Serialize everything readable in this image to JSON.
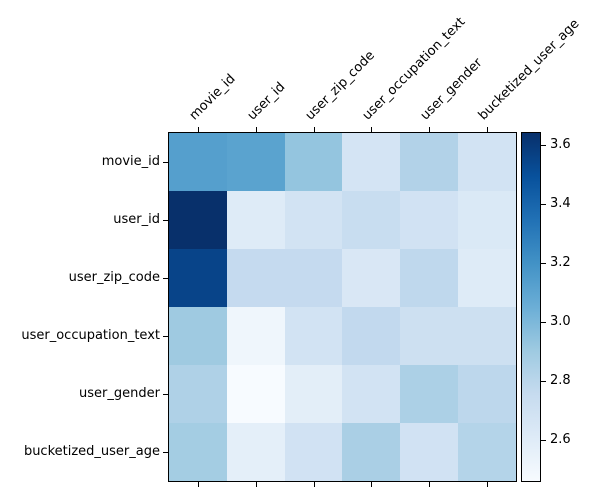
{
  "figure": {
    "background": "#ffffff",
    "text_color": "#000000",
    "spine_color": "#000000"
  },
  "chart_data": {
    "type": "heatmap",
    "title": "",
    "xlabel": "",
    "ylabel": "",
    "grid": false,
    "x_tick_labels": [
      "movie_id",
      "user_id",
      "user_zip_code",
      "user_occupation_text",
      "user_gender",
      "bucketized_user_age"
    ],
    "y_tick_labels": [
      "movie_id",
      "user_id",
      "user_zip_code",
      "user_occupation_text",
      "user_gender",
      "bucketized_user_age"
    ],
    "values": [
      [
        3.13,
        3.11,
        2.93,
        2.67,
        2.83,
        2.68
      ],
      [
        3.64,
        2.61,
        2.68,
        2.74,
        2.69,
        2.63
      ],
      [
        3.55,
        2.76,
        2.76,
        2.64,
        2.78,
        2.61
      ],
      [
        2.9,
        2.51,
        2.68,
        2.77,
        2.71,
        2.71
      ],
      [
        2.84,
        2.46,
        2.58,
        2.68,
        2.85,
        2.79
      ],
      [
        2.88,
        2.57,
        2.69,
        2.86,
        2.69,
        2.82
      ]
    ],
    "vmin": 2.46,
    "vmax": 3.64,
    "colormap": {
      "name": "Blues",
      "anchors": [
        {
          "t": 0.0,
          "color": "#f7fbff"
        },
        {
          "t": 0.125,
          "color": "#deebf7"
        },
        {
          "t": 0.25,
          "color": "#c6dbef"
        },
        {
          "t": 0.375,
          "color": "#9ecae1"
        },
        {
          "t": 0.5,
          "color": "#6baed6"
        },
        {
          "t": 0.625,
          "color": "#4292c6"
        },
        {
          "t": 0.75,
          "color": "#2171b5"
        },
        {
          "t": 0.875,
          "color": "#08519c"
        },
        {
          "t": 1.0,
          "color": "#08306b"
        }
      ]
    },
    "colorbar": {
      "position": "right",
      "tick_labels": [
        "3.6",
        "3.4",
        "3.2",
        "3.0",
        "2.8",
        "2.6"
      ],
      "tick_values": [
        3.6,
        3.4,
        3.2,
        3.0,
        2.8,
        2.6
      ]
    }
  }
}
